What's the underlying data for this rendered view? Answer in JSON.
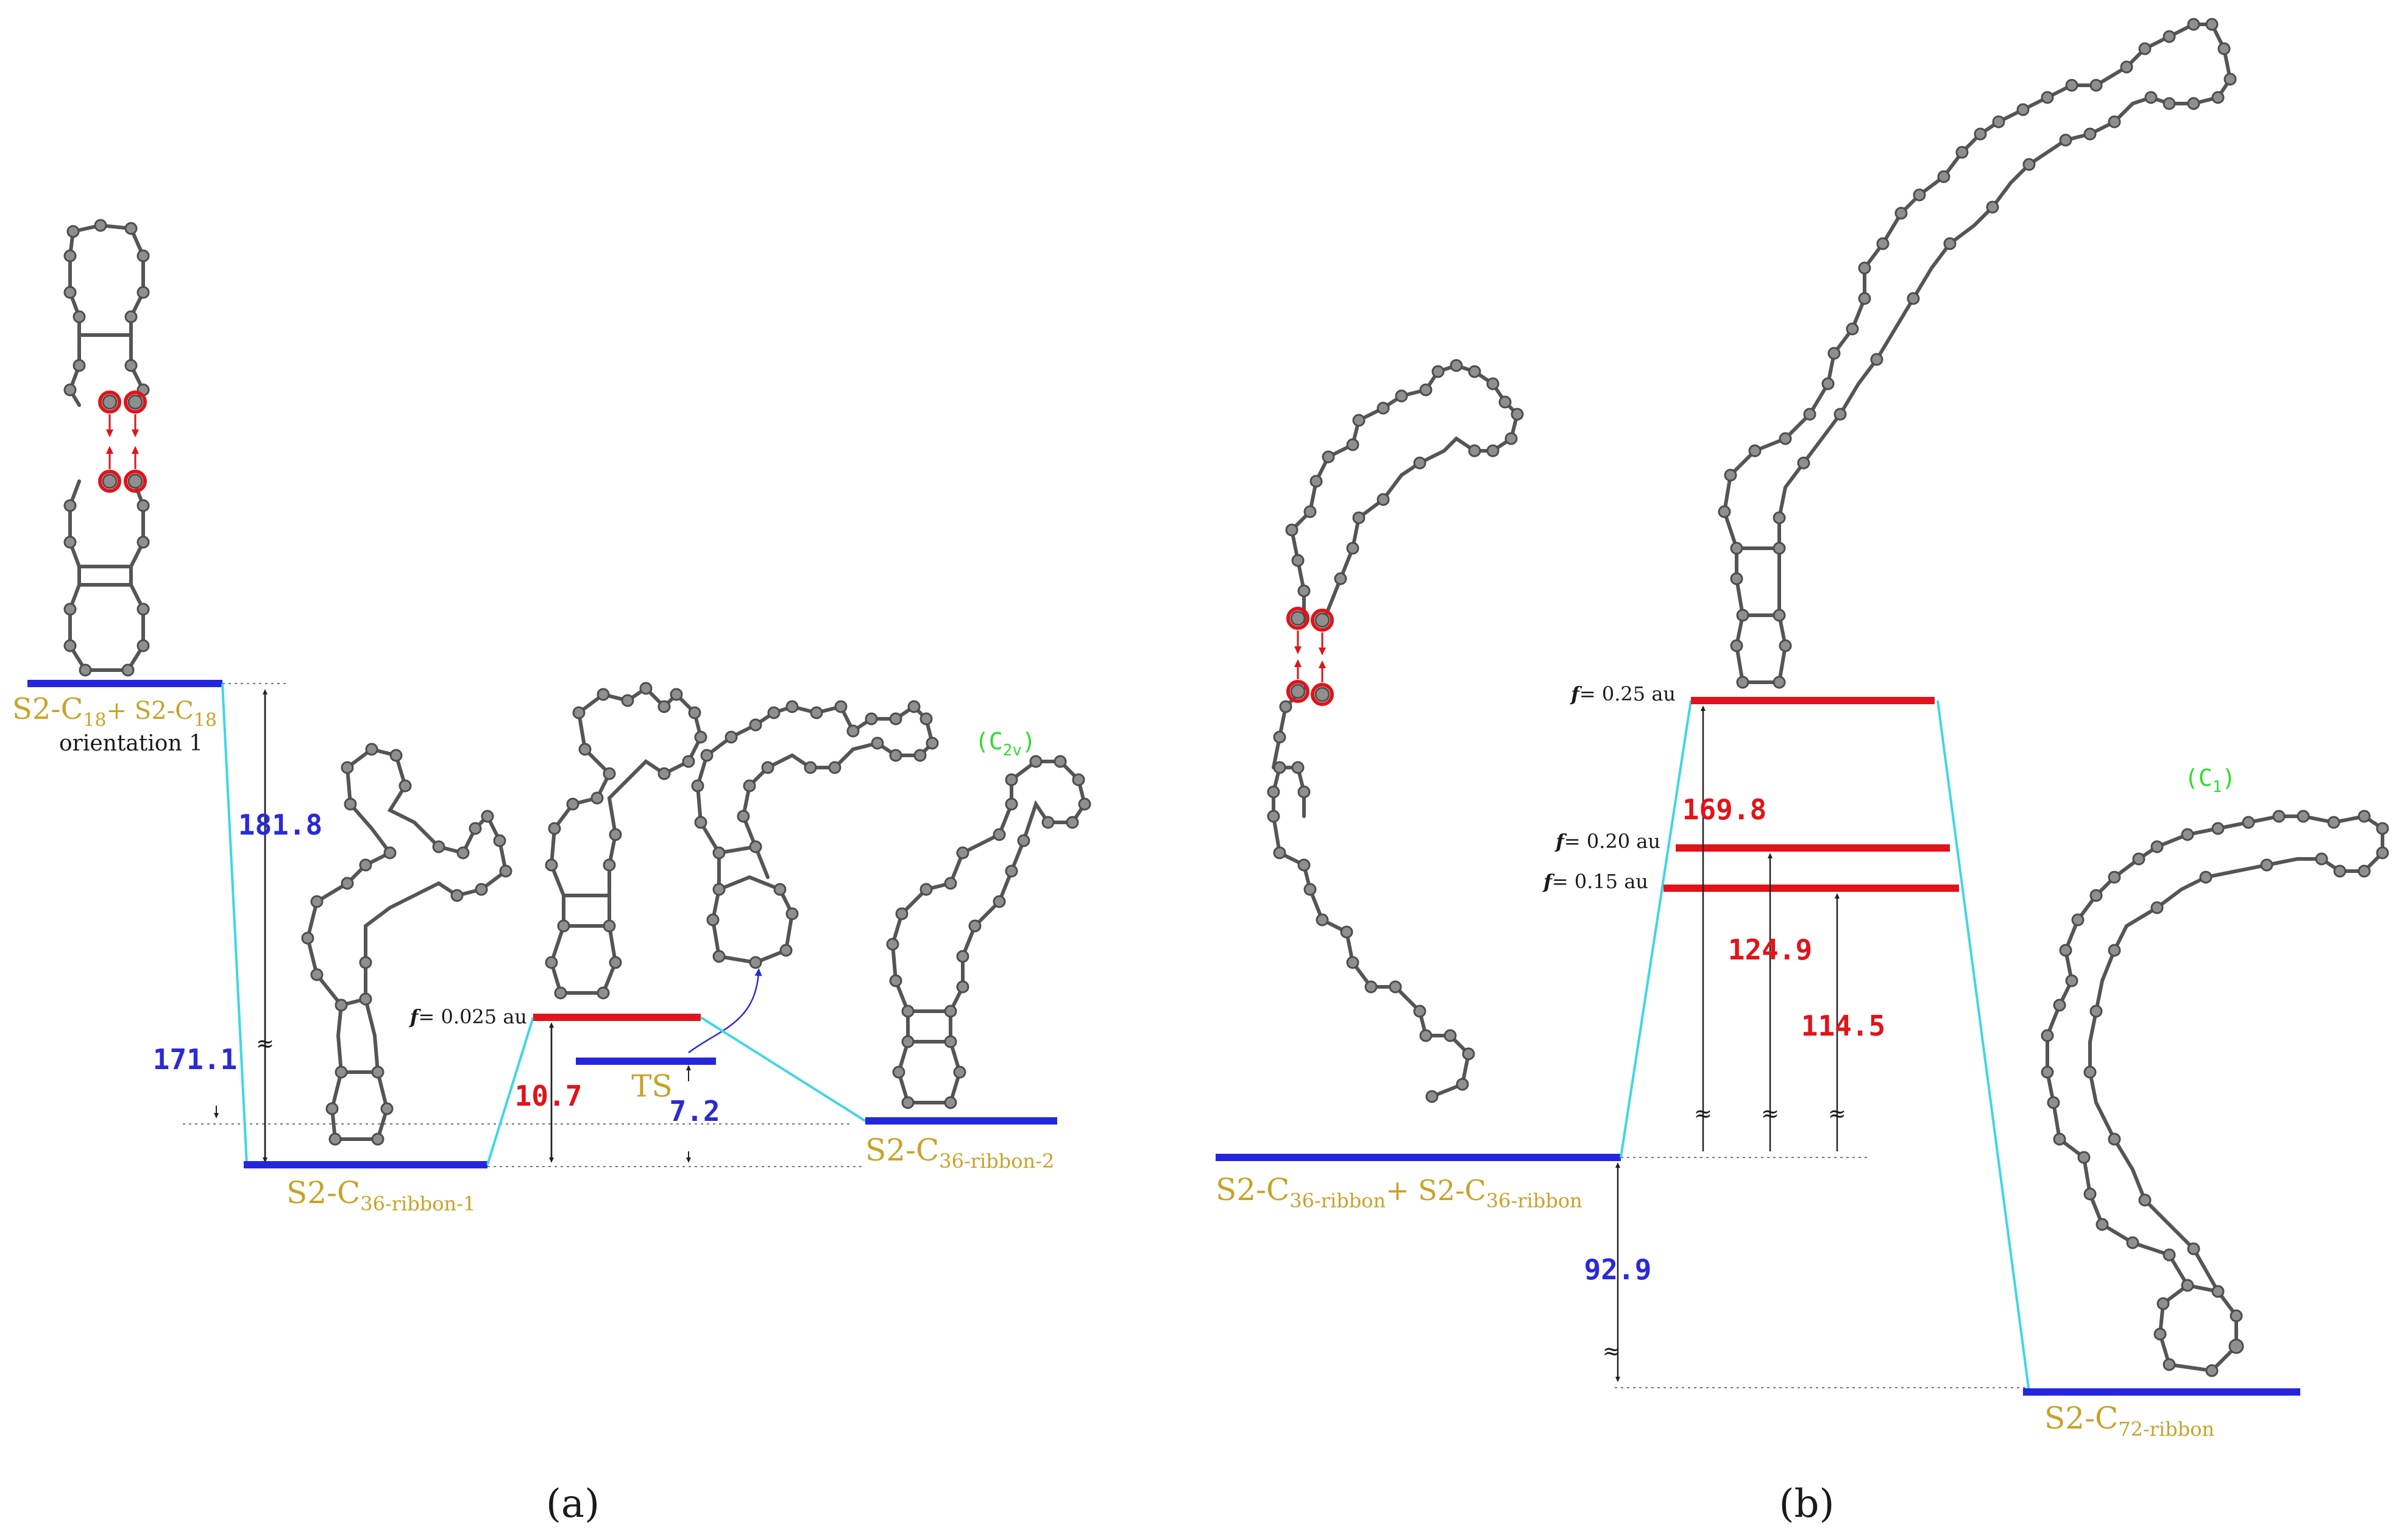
{
  "panel_a": {
    "caption": "(a)",
    "left_label_main": "S2-C",
    "left_label_sub1": "18",
    "left_label_plus": "+ S2-C",
    "left_label_sub2": "18",
    "left_orientation": "orientation 1",
    "val_181": "181.8",
    "val_171": "171.1",
    "val_10": "10.7",
    "val_7": "7.2",
    "ts_label": "TS",
    "f_label_prefix": "f",
    "f_label_value": "= 0.025 au",
    "ribbon1_main": "S2-C",
    "ribbon1_sub": "36-ribbon-1",
    "ribbon2_main": "S2-C",
    "ribbon2_sub": "36-ribbon-2",
    "symmetry_main": "(C",
    "symmetry_sub": "2v",
    "symmetry_close": ")",
    "approx": "≈"
  },
  "panel_b": {
    "caption": "(b)",
    "left_label_main": "S2-C",
    "left_label_sub1": "36-ribbon",
    "left_label_plus": "+ S2-C",
    "left_label_sub2": "36-ribbon",
    "val_92": "92.9",
    "val_169": "169.8",
    "val_124": "124.9",
    "val_114": "114.5",
    "f1_prefix": "f",
    "f1_value": "= 0.25 au",
    "f2_prefix": "f",
    "f2_value": "= 0.20 au",
    "f3_prefix": "f",
    "f3_value": "= 0.15 au",
    "product_main": "S2-C",
    "product_sub": "72-ribbon",
    "symmetry_main": "(C",
    "symmetry_sub": "1",
    "symmetry_close": ")",
    "approx": "≈"
  },
  "colors": {
    "ground_level": "#2525e0",
    "excited_level": "#e0141a",
    "connector": "#3fd6e6",
    "label_gold": "#c9a227",
    "symmetry_green": "#2ddc2d"
  }
}
